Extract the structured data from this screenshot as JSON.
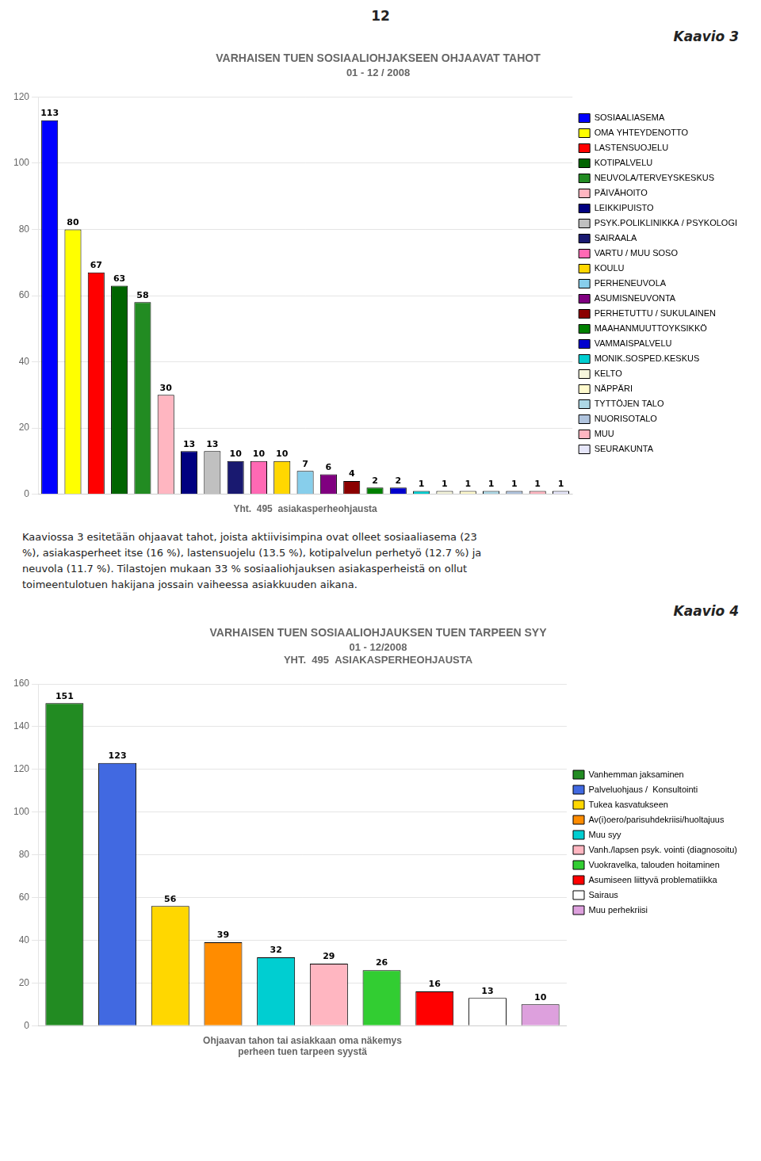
{
  "chart_data": [
    {
      "type": "bar",
      "title": "VARHAISEN TUEN SOSIAALIOHJAKSEEN OHJAAVAT TAHOT",
      "subtitle": "01 - 12 / 2008",
      "x_label": "Yht.  495  asiakasperheohjausta",
      "annotations": [
        "12",
        "Kaavio 3",
        "Kaaviossa 3 esitetään ohjaavat tahot, joista aktiivisimpina ovat olleet sosiaaliasema (23\n%), asiakasperheet itse (16 %), lastensuojelu (13.5 %), kotipalvelun perhetyö (12.7 %) ja\nneuvola (11.7 %). Tilastojen mukaan 33 % sosiaaliohjauksen asiakasperheistä on ollut\ntoimeentulotuen hakijana jossain vaiheessa asiakkuuden aikana."
      ],
      "categories": [
        "SOSIAALIASEMA",
        "OMA YHTEYDENOTTO",
        "LASTENSUOJELU",
        "KOTIPALVELU",
        "NEUVOLA/TERVEYSKESKUS",
        "PÄIVÄHOITO",
        "LEIKKIPUISTO",
        "PSYK.POLIKLINIKKA / PSYKOLOGI",
        "SAIRAALA",
        "VARTU / MUU SOSO",
        "KOULU",
        "PERHENEUVOLA",
        "ASUMISNEUVONTA",
        "PERHETUTTU / SUKULAINEN",
        "MAAHANMUUTTOYKSIKKÖ",
        "VAMMAISPALVELU",
        "MONIK.SOSPED.KESKUS",
        "KELTO",
        "NÄPPÄRI",
        "TYTTÖJEN TALO",
        "NUORISOTALO",
        "MUU",
        "SEURAKUNTA"
      ],
      "values": [
        113,
        80,
        67,
        63,
        58,
        30,
        13,
        13,
        10,
        10,
        10,
        7,
        6,
        4,
        2,
        2,
        1,
        1,
        1,
        1,
        1,
        1,
        1
      ],
      "colors": [
        "#0000FF",
        "#FFFF00",
        "#FF0000",
        "#006400",
        "#228B22",
        "#FFB6C1",
        "#000080",
        "#C0C0C0",
        "#191970",
        "#FF69B4",
        "#FFD700",
        "#87CEEB",
        "#800080",
        "#8B0000",
        "#008000",
        "#0000CD",
        "#00CED1",
        "#F5F5DC",
        "#FFFACD",
        "#ADD8E6",
        "#B0C4DE",
        "#FFB6C1",
        "#E6E6FA"
      ],
      "ylim": [
        0,
        120
      ],
      "yticks": [
        0,
        20,
        40,
        60,
        80,
        100,
        120
      ],
      "grid": true,
      "legend": "right",
      "data_labels": true,
      "tick_labels": "y"
    },
    {
      "type": "bar",
      "title": "VARHAISEN TUEN SOSIAALIOHJAUKSEN TUEN TARPEEN SYY",
      "subtitle": "01 - 12/2008",
      "x_label": "Ohjaavan tahon tai asiakkaan oma näkemys\nperheen tuen tarpeen syystä",
      "annotations": [
        "Kaavio 4",
        "YHT.  495  ASIAKASPERHEOHJAUSTA"
      ],
      "categories": [
        "Vanhemman jaksaminen",
        "Palveluohjaus /  Konsultointi",
        "Tukea kasvatukseen",
        "Av(i)oero/parisuhdekriisi/huoltajuus",
        "Muu syy",
        "Vanh./lapsen psyk. vointi (diagnosoitu)",
        "Vuokravelka, talouden hoitaminen",
        "Asumiseen liittyvä problematiikka",
        "Sairaus",
        "Muu perhekriisi"
      ],
      "values": [
        151,
        123,
        56,
        39,
        32,
        29,
        26,
        16,
        13,
        10
      ],
      "colors": [
        "#228B22",
        "#4169E1",
        "#FFD700",
        "#FF8C00",
        "#00CED1",
        "#FFB6C1",
        "#32CD32",
        "#FF0000",
        "#FFFFFF",
        "#DDA0DD"
      ],
      "ylim": [
        0,
        160
      ],
      "yticks": [
        0,
        20,
        40,
        60,
        80,
        100,
        120,
        140,
        160
      ],
      "grid": true,
      "legend": "right",
      "data_labels": true,
      "tick_labels": "y"
    }
  ]
}
